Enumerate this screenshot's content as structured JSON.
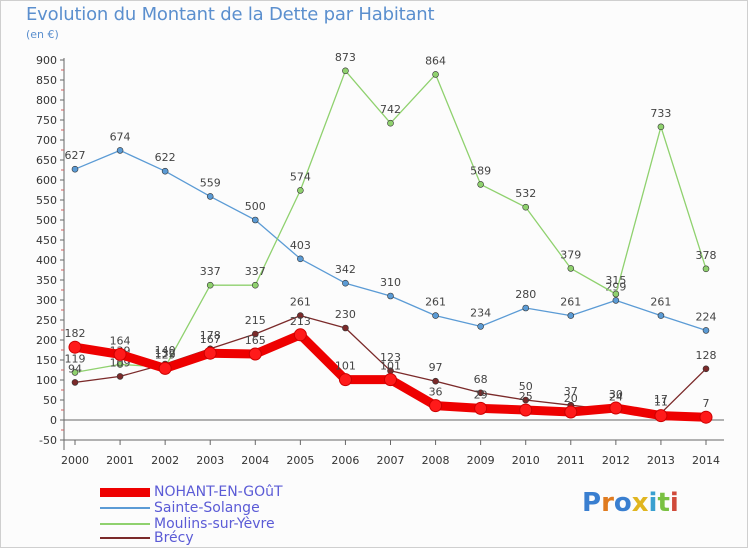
{
  "header": {
    "title": "Evolution du Montant de la Dette par Habitant",
    "subtitle": "(en €)"
  },
  "logo": {
    "text": "Proxiti",
    "colors": [
      "#3a7fd0",
      "#e07b1f",
      "#3a7fd0",
      "#e0b51f",
      "#3aa0d0",
      "#7ac142",
      "#d04a3a"
    ]
  },
  "chart_data": {
    "type": "line",
    "title": "Evolution du Montant de la Dette par Habitant",
    "ylabel": "(en €)",
    "xlabel": "",
    "ylim": [
      -50,
      900
    ],
    "yticks": [
      -50,
      0,
      50,
      100,
      150,
      200,
      250,
      300,
      350,
      400,
      450,
      500,
      550,
      600,
      650,
      700,
      750,
      800,
      850,
      900
    ],
    "grid": false,
    "legend_position": "bottom",
    "categories": [
      "2000",
      "2001",
      "2002",
      "2003",
      "2004",
      "2005",
      "2006",
      "2007",
      "2008",
      "2009",
      "2010",
      "2011",
      "2012",
      "2013",
      "2014"
    ],
    "series": [
      {
        "name": "NOHANT-EN-GOûT",
        "color": "#ee0000",
        "values": [
          182,
          164,
          129,
          167,
          165,
          213,
          101,
          101,
          36,
          29,
          25,
          20,
          30,
          11,
          7
        ]
      },
      {
        "name": "Sainte-Solange",
        "color": "#5b9bd5",
        "values": [
          627,
          674,
          622,
          559,
          500,
          403,
          342,
          310,
          261,
          234,
          280,
          261,
          299,
          261,
          224
        ]
      },
      {
        "name": "Moulins-sur-Yèvre",
        "color": "#8fd16e",
        "values": [
          119,
          139,
          132,
          337,
          337,
          574,
          873,
          742,
          864,
          589,
          532,
          379,
          315,
          733,
          378
        ]
      },
      {
        "name": "Brécy",
        "color": "#7b2a2a",
        "values": [
          94,
          109,
          140,
          178,
          215,
          261,
          230,
          123,
          97,
          68,
          50,
          37,
          24,
          17,
          128
        ]
      }
    ]
  }
}
